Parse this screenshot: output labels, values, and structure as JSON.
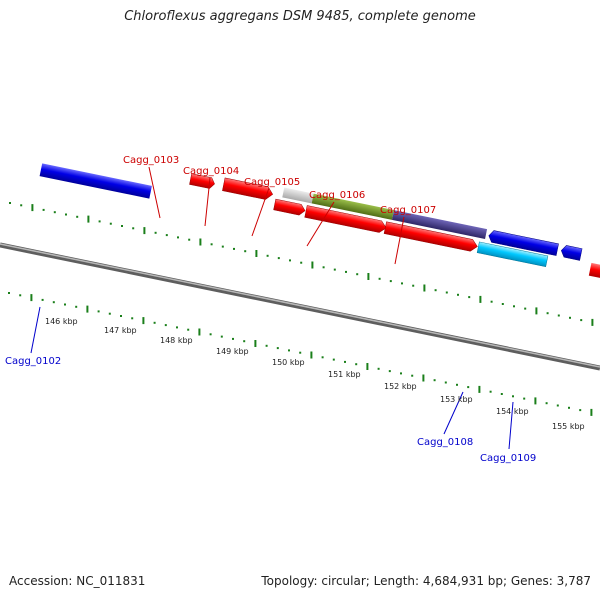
{
  "title": "Chloroflexus aggregans DSM 9485, complete genome",
  "footer": {
    "accession": "Accession: NC_011831",
    "stats": "Topology: circular; Length: 4,684,931 bp; Genes: 3,787"
  },
  "colors": {
    "forward_gene": "#ff0000",
    "reverse_gene": "#0000e6",
    "reverse_gene_light": "#00c8ff",
    "feature_grey": "#c8c8c8",
    "feature_green": "#6b8e23",
    "feature_purple": "#483d8b",
    "tick": "#1a7f1a",
    "backbone": "#808080",
    "forward_label": "#cc0000",
    "reverse_label": "#0000cc"
  },
  "scale_ticks": [
    "146 kbp",
    "147 kbp",
    "148 kbp",
    "149 kbp",
    "150 kbp",
    "151 kbp",
    "152 kbp",
    "153 kbp",
    "154 kbp",
    "155 kbp"
  ],
  "genes": [
    {
      "label": "Cagg_0102",
      "strand": "reverse"
    },
    {
      "label": "Cagg_0103",
      "strand": "forward"
    },
    {
      "label": "Cagg_0104",
      "strand": "forward"
    },
    {
      "label": "Cagg_0105",
      "strand": "forward"
    },
    {
      "label": "Cagg_0106",
      "strand": "forward"
    },
    {
      "label": "Cagg_0107",
      "strand": "forward"
    },
    {
      "label": "Cagg_0108",
      "strand": "reverse"
    },
    {
      "label": "Cagg_0109",
      "strand": "reverse"
    }
  ]
}
